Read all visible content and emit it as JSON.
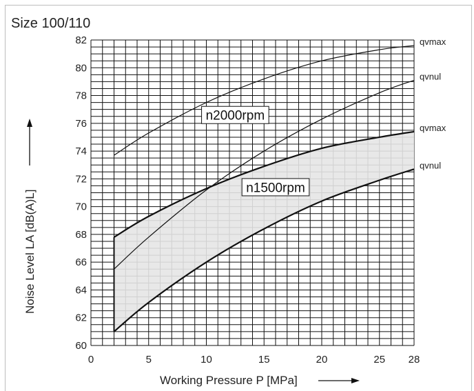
{
  "chart_data": {
    "type": "line",
    "title": "Size 100/110",
    "xlabel": "Working Pressure P [MPa]",
    "ylabel": "Noise Level LA [dB(A)L]",
    "xlim": [
      0,
      28
    ],
    "ylim": [
      60,
      82
    ],
    "xticks": [
      0,
      5,
      10,
      15,
      20,
      25,
      28
    ],
    "yticks": [
      60,
      62,
      64,
      66,
      68,
      70,
      72,
      74,
      76,
      78,
      80,
      82
    ],
    "grid": true,
    "x": [
      2,
      5,
      10,
      15,
      20,
      25,
      28
    ],
    "series": [
      {
        "name": "qvmax",
        "group": "n2000rpm",
        "values": [
          73.7,
          75.3,
          77.5,
          79.2,
          80.5,
          81.3,
          81.6
        ]
      },
      {
        "name": "qvnul",
        "group": "n2000rpm",
        "values": [
          65.5,
          67.8,
          71.2,
          74.0,
          76.3,
          78.2,
          79.1
        ]
      },
      {
        "name": "qvmax",
        "group": "n1500rpm",
        "values": [
          67.8,
          69.3,
          71.3,
          72.9,
          74.2,
          75.0,
          75.4
        ]
      },
      {
        "name": "qvnul",
        "group": "n1500rpm",
        "values": [
          61.0,
          63.1,
          66.0,
          68.4,
          70.4,
          71.9,
          72.7
        ]
      }
    ],
    "annotations": [
      {
        "text": "n2000rpm",
        "x": 12.5,
        "y": 76.6
      },
      {
        "text": "n1500rpm",
        "x": 16.0,
        "y": 71.4
      }
    ],
    "shaded_band": {
      "upper": "n1500rpm qvmax",
      "lower": "n1500rpm qvnul",
      "color": "#e6e6e6"
    }
  }
}
